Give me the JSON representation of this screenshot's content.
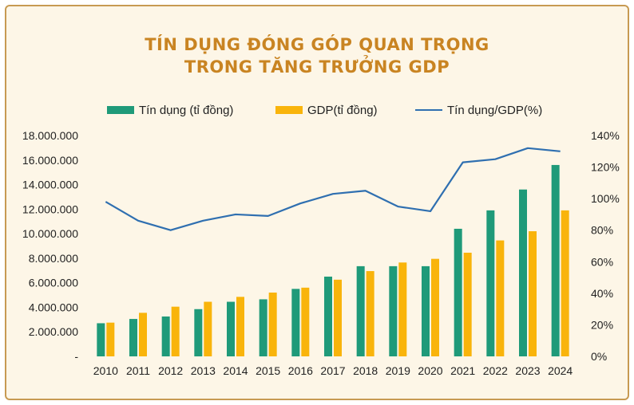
{
  "title_line1": "TÍN DỤNG ĐÓNG GÓP QUAN TRỌNG",
  "title_line2": "TRONG TĂNG TRƯỞNG GDP",
  "colors": {
    "credit": "#1f9a79",
    "gdp": "#f9b40b",
    "ratio": "#2f6fb0",
    "title": "#c98422",
    "frame": "#c79a52",
    "background": "#fdf6e7"
  },
  "chart_data": {
    "type": "bar",
    "categories": [
      "2010",
      "2011",
      "2012",
      "2013",
      "2014",
      "2015",
      "2016",
      "2017",
      "2018",
      "2019",
      "2020",
      "2021",
      "2022",
      "2023",
      "2024"
    ],
    "series": [
      {
        "name": "Tín dụng (tỉ đồng)",
        "type": "bar",
        "axis": "left",
        "values": [
          2700000,
          3050000,
          3250000,
          3850000,
          4450000,
          4650000,
          5500000,
          6500000,
          7350000,
          7350000,
          7350000,
          10400000,
          11900000,
          13600000,
          15600000
        ]
      },
      {
        "name": "GDP(tỉ đồng)",
        "type": "bar",
        "axis": "left",
        "values": [
          2750000,
          3550000,
          4050000,
          4450000,
          4850000,
          5200000,
          5600000,
          6250000,
          6950000,
          7650000,
          7950000,
          8450000,
          9450000,
          10200000,
          11900000
        ]
      },
      {
        "name": "Tín dụng/GDP(%)",
        "type": "line",
        "axis": "right",
        "values": [
          98,
          86,
          80,
          86,
          90,
          89,
          97,
          103,
          105,
          95,
          92,
          123,
          125,
          132,
          130
        ]
      }
    ],
    "y_left": {
      "min": 0,
      "max": 18000000,
      "ticks": [
        "-",
        "2.000.000",
        "4.000.000",
        "6.000.000",
        "8.000.000",
        "10.000.000",
        "12.000.000",
        "14.000.000",
        "16.000.000",
        "18.000.000"
      ]
    },
    "y_right": {
      "min": 0,
      "max": 140,
      "ticks": [
        "0%",
        "20%",
        "40%",
        "60%",
        "80%",
        "100%",
        "120%",
        "140%"
      ]
    },
    "legend_position": "top",
    "grid": false
  }
}
